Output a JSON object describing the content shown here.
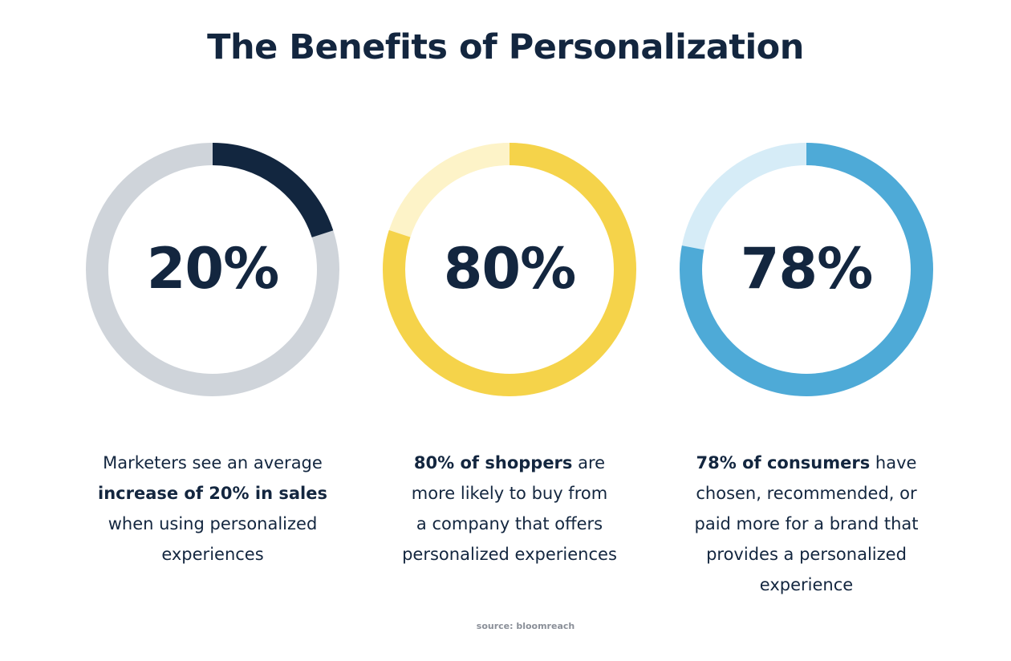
{
  "header": {
    "title": "The Benefits of Personalization"
  },
  "chart_data": [
    {
      "type": "donut",
      "value": 20,
      "label": "20%",
      "colors": {
        "filled": "#12263f",
        "track": "#cfd4da"
      },
      "text": {
        "line1": "Marketers see an average",
        "line2_bold": "increase of 20% in sales",
        "line3": "when using personalized",
        "line4": "experiences"
      }
    },
    {
      "type": "donut",
      "value": 80,
      "label": "80%",
      "colors": {
        "filled": "#f5d34a",
        "track": "#fdf3c8"
      },
      "text": {
        "line1_bold": "80% of shoppers",
        "line1_rest": " are",
        "line2": "more likely to buy from",
        "line3": "a company that offers",
        "line4": "personalized experiences"
      }
    },
    {
      "type": "donut",
      "value": 78,
      "label": "78%",
      "colors": {
        "filled": "#4eaad7",
        "track": "#d6ecf7"
      },
      "text": {
        "line1_bold": "78% of consumers",
        "line1_rest": " have",
        "line2": "chosen, recommended, or",
        "line3": "paid more for a brand that",
        "line4": "provides a personalized",
        "line5": "experience"
      }
    }
  ],
  "footer": {
    "source": "source: bloomreach"
  }
}
